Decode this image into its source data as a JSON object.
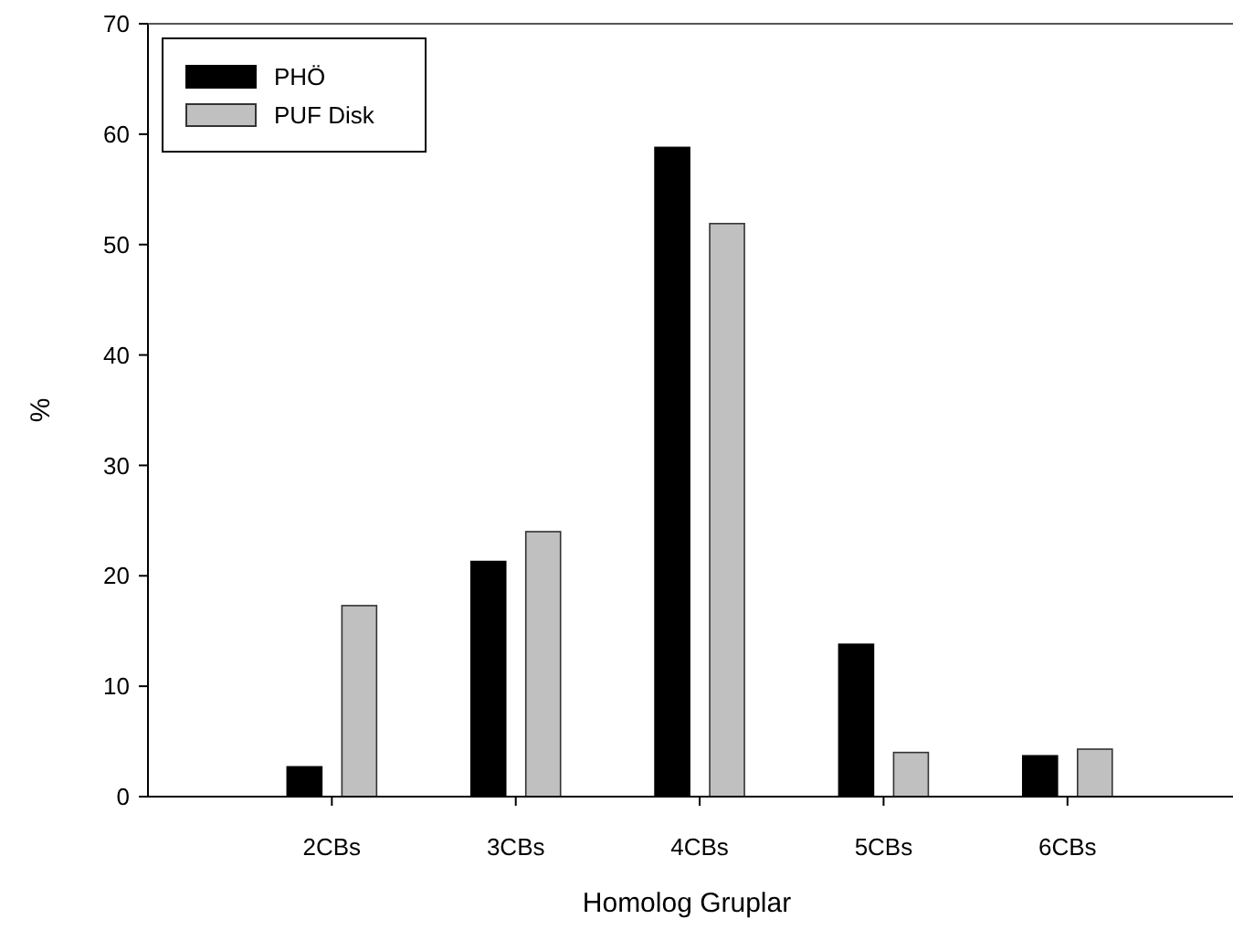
{
  "chart_data": {
    "type": "bar",
    "xlabel": "Homolog Gruplar",
    "ylabel": "%",
    "categories": [
      "2CBs",
      "3CBs",
      "4CBs",
      "5CBs",
      "6CBs"
    ],
    "series": [
      {
        "name": "PHÖ",
        "color": "#000000",
        "values": [
          2.7,
          21.3,
          58.8,
          13.8,
          3.7
        ]
      },
      {
        "name": "PUF Disk",
        "color": "#c0c0c0",
        "values": [
          17.3,
          24.0,
          51.9,
          4.0,
          4.3
        ]
      }
    ],
    "ylim": [
      0,
      70
    ],
    "yticks": [
      0,
      10,
      20,
      30,
      40,
      50,
      60,
      70
    ],
    "grid": false,
    "legend": "top left"
  }
}
